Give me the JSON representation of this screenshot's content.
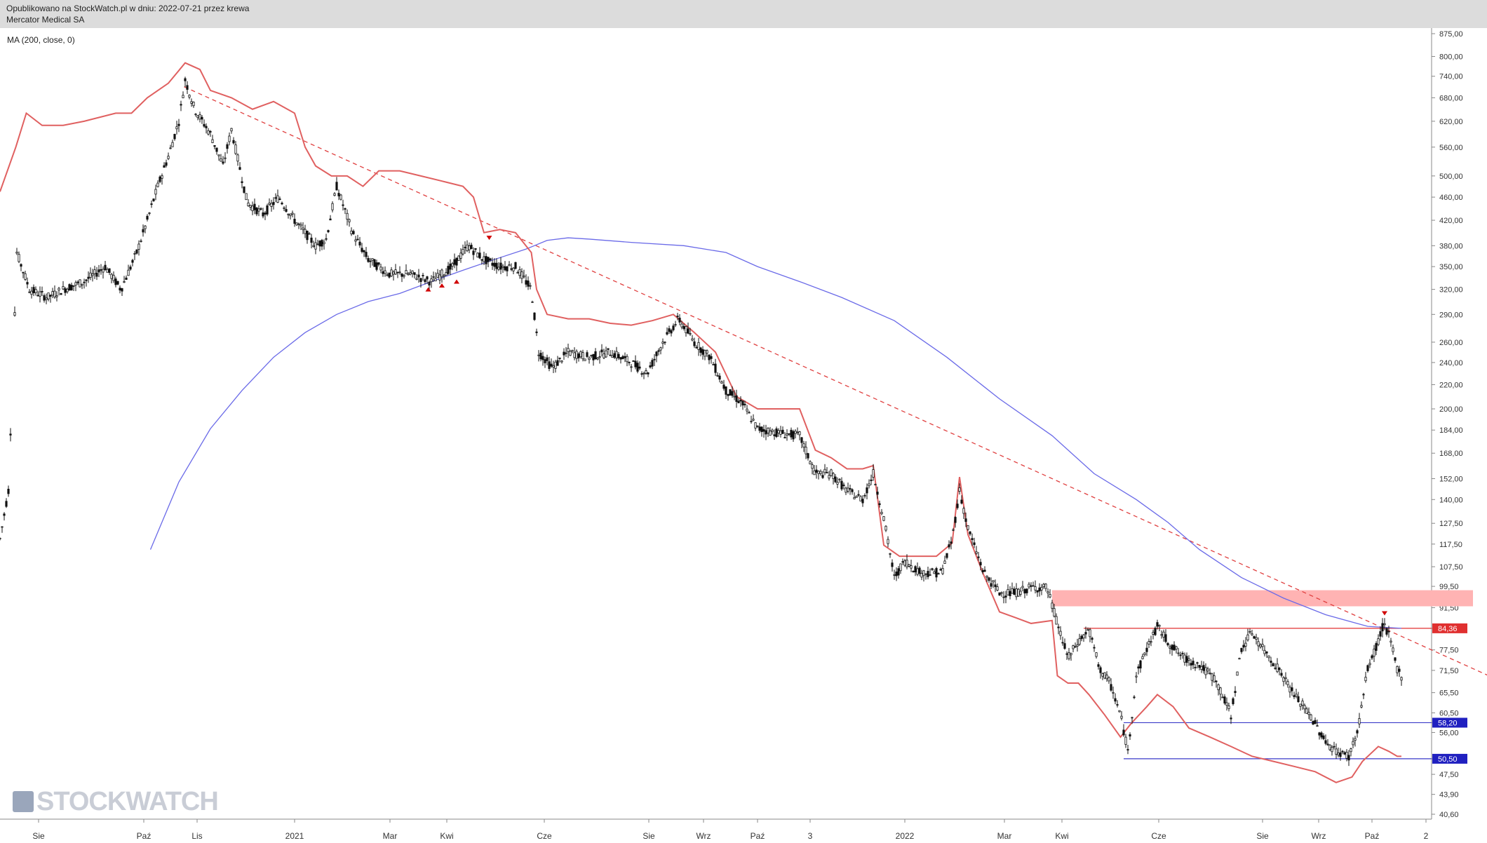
{
  "header": {
    "published": "Opublikowano na StockWatch.pl w dniu: 2022-07-21 przez krewa",
    "instrument": "Mercator Medical SA"
  },
  "indicator_label": "MA (200, close, 0)",
  "watermark": "STOCKWATCH",
  "colors": {
    "price": "#111111",
    "close_line": "#e06060",
    "ma": "#6a6ae8",
    "trendline": "#e04040",
    "resistance_zone": "#ffb3b3",
    "resistance_line": "#e03030",
    "support_line": "#3a3ac8"
  },
  "chart_data": {
    "type": "candlestick",
    "y_scale": "log",
    "ylim": [
      40.6,
      900
    ],
    "y_ticks": [
      "875,00",
      "800,00",
      "740,00",
      "680,00",
      "620,00",
      "560,00",
      "500,00",
      "460,00",
      "420,00",
      "380,00",
      "350,00",
      "320,00",
      "290,00",
      "260,00",
      "240,00",
      "220,00",
      "200,00",
      "184,00",
      "168,00",
      "152,00",
      "140,00",
      "127,50",
      "117,50",
      "107,50",
      "99,50",
      "91,50",
      "84,36",
      "77,50",
      "71,50",
      "65,50",
      "60,50",
      "58,20",
      "56,00",
      "50,50",
      "47,50",
      "43,90",
      "40,60"
    ],
    "x_ticks": [
      "Sie",
      "Paź",
      "Lis",
      "2021",
      "Mar",
      "Kwi",
      "Cze",
      "Sie",
      "Wrz",
      "Paź",
      "3",
      "2022",
      "Mar",
      "Kwi",
      "Cze",
      "Sie",
      "Wrz",
      "Paź",
      "2"
    ],
    "price_path": [
      [
        0,
        120
      ],
      [
        8,
        145
      ],
      [
        16,
        370
      ],
      [
        28,
        320
      ],
      [
        45,
        310
      ],
      [
        60,
        320
      ],
      [
        80,
        330
      ],
      [
        100,
        350
      ],
      [
        115,
        320
      ],
      [
        130,
        370
      ],
      [
        140,
        420
      ],
      [
        150,
        480
      ],
      [
        160,
        540
      ],
      [
        170,
        620
      ],
      [
        176,
        730
      ],
      [
        185,
        650
      ],
      [
        200,
        590
      ],
      [
        212,
        520
      ],
      [
        220,
        600
      ],
      [
        235,
        450
      ],
      [
        250,
        430
      ],
      [
        265,
        460
      ],
      [
        280,
        420
      ],
      [
        290,
        400
      ],
      [
        300,
        380
      ],
      [
        310,
        390
      ],
      [
        320,
        480
      ],
      [
        335,
        400
      ],
      [
        350,
        360
      ],
      [
        370,
        340
      ],
      [
        390,
        340
      ],
      [
        410,
        330
      ],
      [
        430,
        350
      ],
      [
        445,
        380
      ],
      [
        460,
        360
      ],
      [
        475,
        350
      ],
      [
        490,
        350
      ],
      [
        505,
        320
      ],
      [
        512,
        250
      ],
      [
        525,
        235
      ],
      [
        540,
        250
      ],
      [
        560,
        245
      ],
      [
        580,
        250
      ],
      [
        600,
        240
      ],
      [
        615,
        230
      ],
      [
        630,
        260
      ],
      [
        645,
        285
      ],
      [
        660,
        260
      ],
      [
        675,
        245
      ],
      [
        690,
        215
      ],
      [
        705,
        205
      ],
      [
        720,
        185
      ],
      [
        740,
        182
      ],
      [
        760,
        180
      ],
      [
        775,
        155
      ],
      [
        790,
        155
      ],
      [
        805,
        145
      ],
      [
        820,
        140
      ],
      [
        830,
        155
      ],
      [
        840,
        130
      ],
      [
        850,
        103
      ],
      [
        860,
        110
      ],
      [
        875,
        105
      ],
      [
        895,
        105
      ],
      [
        905,
        120
      ],
      [
        912,
        145
      ],
      [
        920,
        125
      ],
      [
        935,
        105
      ],
      [
        950,
        97
      ],
      [
        965,
        97
      ],
      [
        980,
        99
      ],
      [
        995,
        99
      ],
      [
        1005,
        86
      ],
      [
        1015,
        75
      ],
      [
        1025,
        80
      ],
      [
        1035,
        84
      ],
      [
        1045,
        72
      ],
      [
        1055,
        68
      ],
      [
        1065,
        60
      ],
      [
        1072,
        52
      ],
      [
        1080,
        70
      ],
      [
        1090,
        78
      ],
      [
        1100,
        85
      ],
      [
        1110,
        80
      ],
      [
        1125,
        75
      ],
      [
        1140,
        73
      ],
      [
        1155,
        69
      ],
      [
        1170,
        60
      ],
      [
        1180,
        78
      ],
      [
        1190,
        83
      ],
      [
        1200,
        78
      ],
      [
        1215,
        72
      ],
      [
        1230,
        65
      ],
      [
        1245,
        60
      ],
      [
        1260,
        54
      ],
      [
        1270,
        52
      ],
      [
        1282,
        51
      ],
      [
        1290,
        56
      ],
      [
        1300,
        72
      ],
      [
        1310,
        80
      ],
      [
        1315,
        86
      ],
      [
        1320,
        82
      ],
      [
        1328,
        72
      ],
      [
        1332,
        70
      ]
    ],
    "close_line_path": [
      [
        0,
        470
      ],
      [
        15,
        560
      ],
      [
        25,
        640
      ],
      [
        40,
        610
      ],
      [
        60,
        610
      ],
      [
        80,
        620
      ],
      [
        110,
        640
      ],
      [
        125,
        640
      ],
      [
        140,
        680
      ],
      [
        160,
        720
      ],
      [
        176,
        780
      ],
      [
        190,
        760
      ],
      [
        200,
        700
      ],
      [
        220,
        680
      ],
      [
        240,
        650
      ],
      [
        260,
        670
      ],
      [
        280,
        640
      ],
      [
        290,
        560
      ],
      [
        300,
        520
      ],
      [
        315,
        500
      ],
      [
        330,
        500
      ],
      [
        345,
        480
      ],
      [
        360,
        510
      ],
      [
        380,
        510
      ],
      [
        400,
        500
      ],
      [
        420,
        490
      ],
      [
        440,
        480
      ],
      [
        450,
        460
      ],
      [
        460,
        400
      ],
      [
        475,
        405
      ],
      [
        490,
        400
      ],
      [
        505,
        370
      ],
      [
        510,
        320
      ],
      [
        520,
        290
      ],
      [
        540,
        285
      ],
      [
        560,
        285
      ],
      [
        580,
        280
      ],
      [
        600,
        278
      ],
      [
        620,
        283
      ],
      [
        640,
        290
      ],
      [
        660,
        270
      ],
      [
        680,
        250
      ],
      [
        700,
        210
      ],
      [
        720,
        200
      ],
      [
        740,
        200
      ],
      [
        760,
        200
      ],
      [
        775,
        170
      ],
      [
        790,
        165
      ],
      [
        805,
        158
      ],
      [
        820,
        158
      ],
      [
        830,
        160
      ],
      [
        840,
        117
      ],
      [
        855,
        112
      ],
      [
        870,
        112
      ],
      [
        890,
        112
      ],
      [
        905,
        118
      ],
      [
        912,
        153
      ],
      [
        920,
        122
      ],
      [
        935,
        104
      ],
      [
        950,
        90
      ],
      [
        965,
        88
      ],
      [
        980,
        86
      ],
      [
        1000,
        87
      ],
      [
        1005,
        70
      ],
      [
        1015,
        68
      ],
      [
        1025,
        68
      ],
      [
        1035,
        65
      ],
      [
        1050,
        60
      ],
      [
        1065,
        55
      ],
      [
        1075,
        58
      ],
      [
        1090,
        62
      ],
      [
        1100,
        65
      ],
      [
        1115,
        62
      ],
      [
        1130,
        57
      ],
      [
        1150,
        55
      ],
      [
        1170,
        53
      ],
      [
        1190,
        51
      ],
      [
        1210,
        50
      ],
      [
        1230,
        49
      ],
      [
        1250,
        48
      ],
      [
        1270,
        46
      ],
      [
        1285,
        47
      ],
      [
        1295,
        50
      ],
      [
        1310,
        53
      ],
      [
        1320,
        52
      ],
      [
        1328,
        51
      ],
      [
        1332,
        51
      ]
    ],
    "ma_path": [
      [
        143,
        115
      ],
      [
        170,
        150
      ],
      [
        200,
        185
      ],
      [
        230,
        215
      ],
      [
        260,
        245
      ],
      [
        290,
        270
      ],
      [
        320,
        290
      ],
      [
        350,
        305
      ],
      [
        380,
        315
      ],
      [
        410,
        330
      ],
      [
        440,
        345
      ],
      [
        470,
        360
      ],
      [
        500,
        375
      ],
      [
        520,
        388
      ],
      [
        540,
        392
      ],
      [
        560,
        390
      ],
      [
        600,
        385
      ],
      [
        650,
        380
      ],
      [
        690,
        370
      ],
      [
        720,
        350
      ],
      [
        760,
        330
      ],
      [
        800,
        310
      ],
      [
        850,
        283
      ],
      [
        900,
        245
      ],
      [
        950,
        208
      ],
      [
        1000,
        180
      ],
      [
        1040,
        155
      ],
      [
        1080,
        140
      ],
      [
        1110,
        128
      ],
      [
        1140,
        115
      ],
      [
        1180,
        103
      ],
      [
        1220,
        95
      ],
      [
        1260,
        89
      ],
      [
        1300,
        85
      ],
      [
        1332,
        84.36
      ]
    ],
    "trendline": [
      [
        175,
        710
      ],
      [
        1480,
        62
      ]
    ],
    "resistance_zone": {
      "x0": 1000,
      "x1": 1400,
      "y0": 92,
      "y1": 98
    },
    "resistance_level": 84.36,
    "support_levels": [
      58.2,
      50.5
    ],
    "markers_up": [
      [
        407,
        320
      ],
      [
        420,
        325
      ],
      [
        434,
        330
      ]
    ],
    "markers_down": [
      [
        465,
        392
      ],
      [
        1316,
        89.5
      ]
    ],
    "highlighted_levels": [
      {
        "label": "84,36",
        "color": "#e03030"
      },
      {
        "label": "58,20",
        "color": "#2020c0"
      },
      {
        "label": "50,50",
        "color": "#2020c0"
      }
    ]
  }
}
